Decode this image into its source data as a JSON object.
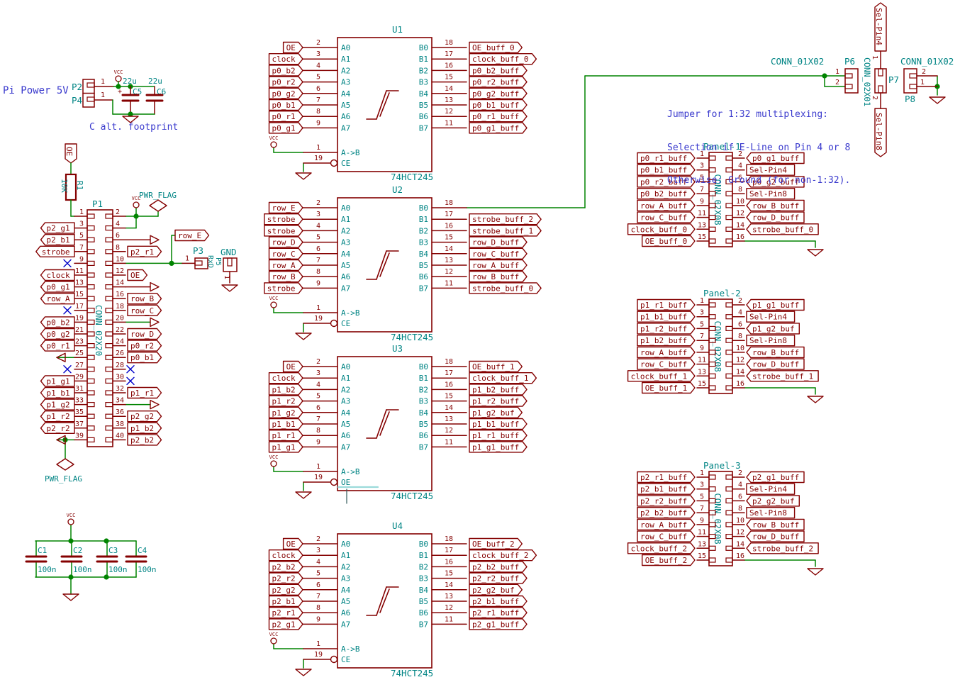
{
  "colors": {
    "red": "#840000",
    "green": "#008400",
    "teal": "#008484",
    "blue": "#3a3acd",
    "nc": "#0000c8",
    "highlight": "#9adbdb"
  },
  "notes": {
    "pi_power": "Pi Power 5V",
    "c_alt": "C alt. footprint",
    "jumper_lines": [
      "Jumper for 1:32 multiplexing:",
      "Selection if E-Line on Pin 4 or 8",
      "Otherwise: Ground (for non-1:32)."
    ]
  },
  "power": {
    "p2_ref": "P2",
    "p4_ref": "P4",
    "pin": "1",
    "c5_ref": "C5",
    "c5_val": "22u",
    "c6_ref": "C6",
    "c6_val": "22u",
    "vcc": "VCC",
    "plus": "+"
  },
  "pullup": {
    "label": "OE",
    "ref": "R1",
    "value": "10K"
  },
  "pwr_flag": "PWR_FLAG",
  "row_e": "row_E",
  "p3": {
    "ref": "P3",
    "value": "RxD",
    "pin": "1"
  },
  "p5": {
    "ref": "P5",
    "value": "GND",
    "pin": "1"
  },
  "p1": {
    "ref": "P1",
    "part": "CONN_02X20",
    "left": [
      {
        "n": "1",
        "t": "wire"
      },
      {
        "n": "3",
        "t": "label",
        "text": "p2_g1"
      },
      {
        "n": "5",
        "t": "label",
        "text": "p2_b1"
      },
      {
        "n": "7",
        "t": "label",
        "text": "strobe"
      },
      {
        "n": "9",
        "t": "nc"
      },
      {
        "n": "11",
        "t": "label",
        "text": "clock"
      },
      {
        "n": "13",
        "t": "label",
        "text": "p0_g1"
      },
      {
        "n": "15",
        "t": "label",
        "text": "row_A"
      },
      {
        "n": "17",
        "t": "nc"
      },
      {
        "n": "19",
        "t": "label",
        "text": "p0_b2"
      },
      {
        "n": "21",
        "t": "label",
        "text": "p0_g2"
      },
      {
        "n": "23",
        "t": "label",
        "text": "p0_r1"
      },
      {
        "n": "25",
        "t": "arrow"
      },
      {
        "n": "27",
        "t": "nc"
      },
      {
        "n": "29",
        "t": "label",
        "text": "p1_g1"
      },
      {
        "n": "31",
        "t": "label",
        "text": "p1_b1"
      },
      {
        "n": "33",
        "t": "label",
        "text": "p1_g2"
      },
      {
        "n": "35",
        "t": "label",
        "text": "p1_r2"
      },
      {
        "n": "37",
        "t": "label",
        "text": "p2_r2"
      },
      {
        "n": "39",
        "t": "pwrflag"
      }
    ],
    "right": [
      {
        "n": "2",
        "t": "vcc"
      },
      {
        "n": "4",
        "t": "wireup"
      },
      {
        "n": "6",
        "t": "arrow"
      },
      {
        "n": "8",
        "t": "label",
        "text": "p2_r1"
      },
      {
        "n": "10",
        "t": "cluster"
      },
      {
        "n": "12",
        "t": "label",
        "text": "OE"
      },
      {
        "n": "14",
        "t": "arrow"
      },
      {
        "n": "16",
        "t": "label",
        "text": "row_B"
      },
      {
        "n": "18",
        "t": "label",
        "text": "row_C"
      },
      {
        "n": "20",
        "t": "arrow_g"
      },
      {
        "n": "22",
        "t": "label",
        "text": "row_D"
      },
      {
        "n": "24",
        "t": "label",
        "text": "p0_r2"
      },
      {
        "n": "26",
        "t": "label",
        "text": "p0_b1"
      },
      {
        "n": "28",
        "t": "nc"
      },
      {
        "n": "30",
        "t": "nc"
      },
      {
        "n": "32",
        "t": "label",
        "text": "p1_r1"
      },
      {
        "n": "34",
        "t": "arrow_g"
      },
      {
        "n": "36",
        "t": "label",
        "text": "p2_g2"
      },
      {
        "n": "38",
        "t": "label",
        "text": "p1_b2"
      },
      {
        "n": "40",
        "t": "label",
        "text": "p2_b2"
      }
    ]
  },
  "ics": [
    {
      "ref": "U1",
      "part": "74HCT245",
      "ctrl_in_n": "1",
      "ctrl_in": "A->B",
      "ce_n": "19",
      "ce": "CE",
      "left": [
        {
          "n": "2",
          "pin": "A0",
          "label": "OE"
        },
        {
          "n": "3",
          "pin": "A1",
          "label": "clock"
        },
        {
          "n": "4",
          "pin": "A2",
          "label": "p0_b2"
        },
        {
          "n": "5",
          "pin": "A3",
          "label": "p0_r2"
        },
        {
          "n": "6",
          "pin": "A4",
          "label": "p0_g2"
        },
        {
          "n": "7",
          "pin": "A5",
          "label": "p0_b1"
        },
        {
          "n": "8",
          "pin": "A6",
          "label": "p0_r1"
        },
        {
          "n": "9",
          "pin": "A7",
          "label": "p0_g1"
        }
      ],
      "right": [
        {
          "n": "18",
          "pin": "B0",
          "label": "OE_buff_0"
        },
        {
          "n": "17",
          "pin": "B1",
          "label": "clock_buff_0"
        },
        {
          "n": "16",
          "pin": "B2",
          "label": "p0_b2_buff"
        },
        {
          "n": "15",
          "pin": "B3",
          "label": "p0_r2_buff"
        },
        {
          "n": "14",
          "pin": "B4",
          "label": "p0_g2_buff"
        },
        {
          "n": "13",
          "pin": "B5",
          "label": "p0_b1_buff"
        },
        {
          "n": "12",
          "pin": "B6",
          "label": "p0_r1_buff"
        },
        {
          "n": "11",
          "pin": "B7",
          "label": "p0_g1_buff"
        }
      ]
    },
    {
      "ref": "U2",
      "part": "74HCT245",
      "ctrl_in_n": "1",
      "ctrl_in": "A->B",
      "ce_n": "19",
      "ce": "CE",
      "left": [
        {
          "n": "2",
          "pin": "A0",
          "label": "row_E"
        },
        {
          "n": "3",
          "pin": "A1",
          "label": "strobe"
        },
        {
          "n": "4",
          "pin": "A2",
          "label": "strobe"
        },
        {
          "n": "5",
          "pin": "A3",
          "label": "row_D"
        },
        {
          "n": "6",
          "pin": "A4",
          "label": "row_C"
        },
        {
          "n": "7",
          "pin": "A5",
          "label": "row_A"
        },
        {
          "n": "8",
          "pin": "A6",
          "label": "row_B"
        },
        {
          "n": "9",
          "pin": "A7",
          "label": "strobe"
        }
      ],
      "right": [
        {
          "n": "18",
          "pin": "B0",
          "label": ""
        },
        {
          "n": "17",
          "pin": "B1",
          "label": "strobe_buff_2"
        },
        {
          "n": "16",
          "pin": "B2",
          "label": "strobe_buff_1"
        },
        {
          "n": "15",
          "pin": "B3",
          "label": "row_D_buff"
        },
        {
          "n": "14",
          "pin": "B4",
          "label": "row_C_buff"
        },
        {
          "n": "13",
          "pin": "B5",
          "label": "row_A_buff"
        },
        {
          "n": "12",
          "pin": "B6",
          "label": "row_B_buff"
        },
        {
          "n": "11",
          "pin": "B7",
          "label": "strobe_buff_0"
        }
      ]
    },
    {
      "ref": "U3",
      "part": "74HCT245",
      "ctrl_in_n": "1",
      "ctrl_in": "A->B",
      "ce_n": "19",
      "ce": "OE",
      "ce_highlight": true,
      "left": [
        {
          "n": "2",
          "pin": "A0",
          "label": "OE"
        },
        {
          "n": "3",
          "pin": "A1",
          "label": "clock"
        },
        {
          "n": "4",
          "pin": "A2",
          "label": "p1_b2"
        },
        {
          "n": "5",
          "pin": "A3",
          "label": "p1_r2"
        },
        {
          "n": "6",
          "pin": "A4",
          "label": "p1_g2"
        },
        {
          "n": "7",
          "pin": "A5",
          "label": "p1_b1"
        },
        {
          "n": "8",
          "pin": "A6",
          "label": "p1_r1"
        },
        {
          "n": "9",
          "pin": "A7",
          "label": "p1_g1"
        }
      ],
      "right": [
        {
          "n": "18",
          "pin": "B0",
          "label": "OE_buff_1"
        },
        {
          "n": "17",
          "pin": "B1",
          "label": "clock_buff_1"
        },
        {
          "n": "16",
          "pin": "B2",
          "label": "p1_b2_buff"
        },
        {
          "n": "15",
          "pin": "B3",
          "label": "p1_r2_buff"
        },
        {
          "n": "14",
          "pin": "B4",
          "label": "p1_g2_buf"
        },
        {
          "n": "13",
          "pin": "B5",
          "label": "p1_b1_buff"
        },
        {
          "n": "12",
          "pin": "B6",
          "label": "p1_r1_buff"
        },
        {
          "n": "11",
          "pin": "B7",
          "label": "p1_g1_buff"
        }
      ]
    },
    {
      "ref": "U4",
      "part": "74HCT245",
      "ctrl_in_n": "1",
      "ctrl_in": "A->B",
      "ce_n": "19",
      "ce": "CE",
      "left": [
        {
          "n": "2",
          "pin": "A0",
          "label": "OE"
        },
        {
          "n": "3",
          "pin": "A1",
          "label": "clock"
        },
        {
          "n": "4",
          "pin": "A2",
          "label": "p2_b2"
        },
        {
          "n": "5",
          "pin": "A3",
          "label": "p2_r2"
        },
        {
          "n": "6",
          "pin": "A4",
          "label": "p2_g2"
        },
        {
          "n": "7",
          "pin": "A5",
          "label": "p2_b1"
        },
        {
          "n": "8",
          "pin": "A6",
          "label": "p2_r1"
        },
        {
          "n": "9",
          "pin": "A7",
          "label": "p2_g1"
        }
      ],
      "right": [
        {
          "n": "18",
          "pin": "B0",
          "label": "OE_buff_2"
        },
        {
          "n": "17",
          "pin": "B1",
          "label": "clock_buff_2"
        },
        {
          "n": "16",
          "pin": "B2",
          "label": "p2_b2_buff"
        },
        {
          "n": "15",
          "pin": "B3",
          "label": "p2_r2_buff"
        },
        {
          "n": "14",
          "pin": "B4",
          "label": "p2_g2_buf"
        },
        {
          "n": "13",
          "pin": "B5",
          "label": "p2_b1_buff"
        },
        {
          "n": "12",
          "pin": "B6",
          "label": "p2_r1_buff"
        },
        {
          "n": "11",
          "pin": "B7",
          "label": "p2_g1_buff"
        }
      ]
    }
  ],
  "panels": [
    {
      "ref": "Panel-1",
      "part": "CONN_02X08",
      "left": [
        {
          "n": "1",
          "label": "p0_r1_buff"
        },
        {
          "n": "3",
          "label": "p0_b1_buff"
        },
        {
          "n": "5",
          "label": "p0_r2_buff"
        },
        {
          "n": "7",
          "label": "p0_b2_buff"
        },
        {
          "n": "9",
          "label": "row_A_buff"
        },
        {
          "n": "11",
          "label": "row_C_buff"
        },
        {
          "n": "13",
          "label": "clock_buff_0"
        },
        {
          "n": "15",
          "label": "OE_buff_0"
        }
      ],
      "right": [
        {
          "n": "2",
          "label": "p0_g1_buff"
        },
        {
          "n": "4",
          "label": "Sel-Pin4"
        },
        {
          "n": "6",
          "label": "p0_g2_buff"
        },
        {
          "n": "8",
          "label": "Sel-Pin8"
        },
        {
          "n": "10",
          "label": "row_B_buff"
        },
        {
          "n": "12",
          "label": "row_D_buff"
        },
        {
          "n": "14",
          "label": "strobe_buff_0"
        },
        {
          "n": "16",
          "label": ""
        }
      ]
    },
    {
      "ref": "Panel-2",
      "part": "CONN_02X08",
      "left": [
        {
          "n": "1",
          "label": "p1_r1_buff"
        },
        {
          "n": "3",
          "label": "p1_b1_buff"
        },
        {
          "n": "5",
          "label": "p1_r2_buff"
        },
        {
          "n": "7",
          "label": "p1_b2_buff"
        },
        {
          "n": "9",
          "label": "row_A_buff"
        },
        {
          "n": "11",
          "label": "row_C_buff"
        },
        {
          "n": "13",
          "label": "clock_buff_1"
        },
        {
          "n": "15",
          "label": "OE_buff_1"
        }
      ],
      "right": [
        {
          "n": "2",
          "label": "p1_g1_buff"
        },
        {
          "n": "4",
          "label": "Sel-Pin4"
        },
        {
          "n": "6",
          "label": "p1_g2_buf"
        },
        {
          "n": "8",
          "label": "Sel-Pin8"
        },
        {
          "n": "10",
          "label": "row_B_buff"
        },
        {
          "n": "12",
          "label": "row_D_buff"
        },
        {
          "n": "14",
          "label": "strobe_buff_1"
        },
        {
          "n": "16",
          "label": ""
        }
      ]
    },
    {
      "ref": "Panel-3",
      "part": "CONN_02X08",
      "left": [
        {
          "n": "1",
          "label": "p2_r1_buff"
        },
        {
          "n": "3",
          "label": "p2_b1_buff"
        },
        {
          "n": "5",
          "label": "p2_r2_buff"
        },
        {
          "n": "7",
          "label": "p2_b2_buff"
        },
        {
          "n": "9",
          "label": "row_A_buff"
        },
        {
          "n": "11",
          "label": "row_C_buff"
        },
        {
          "n": "13",
          "label": "clock_buff_2"
        },
        {
          "n": "15",
          "label": "OE_buff_2"
        }
      ],
      "right": [
        {
          "n": "2",
          "label": "p2_g1_buff"
        },
        {
          "n": "4",
          "label": "Sel-Pin4"
        },
        {
          "n": "6",
          "label": "p2_g2_buf"
        },
        {
          "n": "8",
          "label": "Sel-Pin8"
        },
        {
          "n": "10",
          "label": "row_B_buff"
        },
        {
          "n": "12",
          "label": "row_D_buff"
        },
        {
          "n": "14",
          "label": "strobe_buff_2"
        },
        {
          "n": "16",
          "label": ""
        }
      ]
    }
  ],
  "p6": {
    "ref": "P6",
    "part": "CONN_01X02",
    "n1": "1",
    "n2": "2"
  },
  "p7": {
    "ref": "P7",
    "part": "CONN_02X01",
    "n1": "1",
    "n2": "2",
    "top": "Sel-Pin4",
    "bottom": "Sel-Pin8"
  },
  "p8": {
    "ref": "P8",
    "part": "CONN_01X02",
    "n1": "2",
    "n2": "1"
  },
  "caps": {
    "vcc": "VCC",
    "list": [
      {
        "ref": "C1",
        "val": "100n"
      },
      {
        "ref": "C2",
        "val": "100n"
      },
      {
        "ref": "C3",
        "val": "100n"
      },
      {
        "ref": "C4",
        "val": "100n"
      }
    ]
  }
}
